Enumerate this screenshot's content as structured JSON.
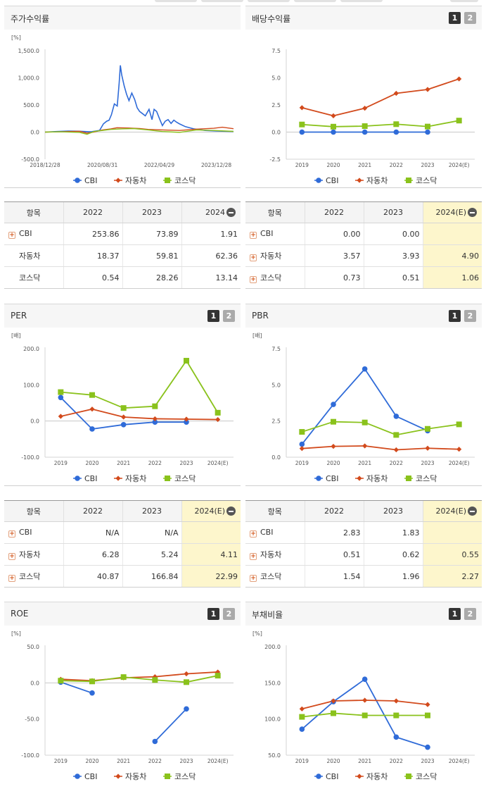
{
  "colors": {
    "cbi": "#2f6bd8",
    "auto": "#d24a1c",
    "kosdaq": "#8ac21c"
  },
  "legend": [
    "CBI",
    "자동차",
    "코스닥"
  ],
  "panels": {
    "stock": {
      "title": "주가수익률",
      "unit": "[%]",
      "y_ticks": [
        "1,500.0",
        "1,000.0",
        "500.0",
        "0.0",
        "-500.0"
      ],
      "x_ticks": [
        "2018/12/28",
        "2020/08/31",
        "2022/04/29",
        "2023/12/28"
      ]
    },
    "dividend": {
      "title": "배당수익률",
      "unit": "",
      "y_ticks": [
        "7.5",
        "5.0",
        "2.5",
        "0.0",
        "-2.5"
      ],
      "x_ticks": [
        "2019",
        "2020",
        "2021",
        "2022",
        "2023",
        "2024(E)"
      ]
    },
    "per": {
      "title": "PER",
      "unit": "[배]",
      "y_ticks": [
        "200.0",
        "100.0",
        "0.0",
        "-100.0"
      ],
      "x_ticks": [
        "2019",
        "2020",
        "2021",
        "2022",
        "2023",
        "2024(E)"
      ]
    },
    "pbr": {
      "title": "PBR",
      "unit": "[배]",
      "y_ticks": [
        "7.5",
        "5.0",
        "2.5",
        "0.0"
      ],
      "x_ticks": [
        "2019",
        "2020",
        "2021",
        "2022",
        "2023",
        "2024(E)"
      ]
    },
    "roe": {
      "title": "ROE",
      "unit": "[%]",
      "y_ticks": [
        "50.0",
        "0.0",
        "-50.0",
        "-100.0"
      ],
      "x_ticks": [
        "2019",
        "2020",
        "2021",
        "2022",
        "2023",
        "2024(E)"
      ]
    },
    "debt": {
      "title": "부채비율",
      "unit": "[%]",
      "y_ticks": [
        "200.0",
        "150.0",
        "100.0",
        "50.0"
      ],
      "x_ticks": [
        "2019",
        "2020",
        "2021",
        "2022",
        "2023",
        "2024(E)"
      ]
    }
  },
  "buttons": {
    "b1": "1",
    "b2": "2"
  },
  "tables": {
    "stock": {
      "headers": [
        "항목",
        "2022",
        "2023",
        "2024"
      ],
      "rows": [
        {
          "name": "CBI",
          "vals": [
            "253.86",
            "73.89",
            "1.91"
          ]
        },
        {
          "name": "자동차",
          "vals": [
            "18.37",
            "59.81",
            "62.36"
          ]
        },
        {
          "name": "코스닥",
          "vals": [
            "0.54",
            "28.26",
            "13.14"
          ]
        }
      ]
    },
    "dividend": {
      "headers": [
        "항목",
        "2022",
        "2023",
        "2024(E)"
      ],
      "rows": [
        {
          "name": "CBI",
          "vals": [
            "0.00",
            "0.00",
            ""
          ]
        },
        {
          "name": "자동차",
          "vals": [
            "3.57",
            "3.93",
            "4.90"
          ]
        },
        {
          "name": "코스닥",
          "vals": [
            "0.73",
            "0.51",
            "1.06"
          ]
        }
      ]
    },
    "per": {
      "headers": [
        "항목",
        "2022",
        "2023",
        "2024(E)"
      ],
      "rows": [
        {
          "name": "CBI",
          "vals": [
            "N/A",
            "N/A",
            ""
          ]
        },
        {
          "name": "자동차",
          "vals": [
            "6.28",
            "5.24",
            "4.11"
          ]
        },
        {
          "name": "코스닥",
          "vals": [
            "40.87",
            "166.84",
            "22.99"
          ]
        }
      ]
    },
    "pbr": {
      "headers": [
        "항목",
        "2022",
        "2023",
        "2024(E)"
      ],
      "rows": [
        {
          "name": "CBI",
          "vals": [
            "2.83",
            "1.83",
            ""
          ]
        },
        {
          "name": "자동차",
          "vals": [
            "0.51",
            "0.62",
            "0.55"
          ]
        },
        {
          "name": "코스닥",
          "vals": [
            "1.54",
            "1.96",
            "2.27"
          ]
        }
      ]
    }
  },
  "chart_data": [
    {
      "id": "stock",
      "type": "line",
      "title": "주가수익률",
      "ylabel": "[%]",
      "ylim": [
        -500,
        1500
      ],
      "x_range": [
        "2018-12-28",
        "2024-06-28"
      ],
      "x_ticks": [
        "2018/12/28",
        "2020/08/31",
        "2022/04/29",
        "2023/12/28"
      ],
      "series": [
        {
          "name": "CBI",
          "x": [
            "2018-12-28",
            "2019-05-01",
            "2019-09-01",
            "2019-12-31",
            "2020-05-01",
            "2020-08-01",
            "2020-09-10",
            "2020-10-15",
            "2020-11-10",
            "2020-12-05",
            "2021-01-05",
            "2021-02-05",
            "2021-02-25",
            "2021-03-10",
            "2021-03-25",
            "2021-04-20",
            "2021-05-15",
            "2021-06-10",
            "2021-07-10",
            "2021-08-10",
            "2021-09-05",
            "2021-10-01",
            "2021-11-01",
            "2021-12-01",
            "2022-01-10",
            "2022-02-10",
            "2022-03-05",
            "2022-04-01",
            "2022-05-01",
            "2022-06-01",
            "2022-07-01",
            "2022-08-01",
            "2022-09-01",
            "2022-10-01",
            "2022-11-01",
            "2022-12-01",
            "2023-02-01",
            "2023-05-01",
            "2023-09-01",
            "2024-01-01",
            "2024-06-28"
          ],
          "y": [
            0,
            10,
            20,
            15,
            5,
            30,
            150,
            200,
            220,
            320,
            520,
            480,
            900,
            1230,
            1050,
            850,
            700,
            580,
            720,
            600,
            450,
            380,
            340,
            300,
            420,
            230,
            420,
            380,
            250,
            120,
            200,
            230,
            160,
            220,
            180,
            150,
            100,
            60,
            30,
            20,
            10
          ]
        },
        {
          "name": "자동차",
          "x": [
            "2018-12-28",
            "2019-06-01",
            "2019-12-31",
            "2020-03-20",
            "2020-06-01",
            "2020-09-01",
            "2020-12-01",
            "2021-02-01",
            "2021-06-01",
            "2021-10-01",
            "2022-01-01",
            "2022-06-01",
            "2022-12-01",
            "2023-06-01",
            "2023-12-01",
            "2024-03-01",
            "2024-06-28"
          ],
          "y": [
            0,
            5,
            15,
            -20,
            0,
            40,
            60,
            80,
            75,
            65,
            50,
            40,
            30,
            55,
            70,
            90,
            62
          ]
        },
        {
          "name": "코스닥",
          "x": [
            "2018-12-28",
            "2019-06-01",
            "2019-12-31",
            "2020-03-20",
            "2020-06-01",
            "2020-09-01",
            "2020-12-01",
            "2021-04-01",
            "2021-08-01",
            "2022-01-01",
            "2022-06-01",
            "2022-12-01",
            "2023-06-01",
            "2023-12-01",
            "2024-06-28"
          ],
          "y": [
            0,
            5,
            -5,
            -40,
            10,
            30,
            50,
            60,
            65,
            40,
            10,
            -5,
            40,
            30,
            13
          ]
        }
      ],
      "legend": "bottom",
      "grid": false
    },
    {
      "id": "dividend",
      "type": "line",
      "title": "배당수익률",
      "ylim": [
        -2.5,
        7.5
      ],
      "categories": [
        "2019",
        "2020",
        "2021",
        "2022",
        "2023",
        "2024(E)"
      ],
      "series": [
        {
          "name": "CBI",
          "values": [
            0,
            0,
            0,
            0,
            0,
            null
          ]
        },
        {
          "name": "자동차",
          "values": [
            2.25,
            1.5,
            2.2,
            3.57,
            3.93,
            4.9
          ]
        },
        {
          "name": "코스닥",
          "values": [
            0.7,
            0.5,
            0.55,
            0.73,
            0.51,
            1.06
          ]
        }
      ],
      "legend": "bottom",
      "grid": false
    },
    {
      "id": "per",
      "type": "line",
      "title": "PER",
      "ylabel": "[배]",
      "ylim": [
        -100,
        200
      ],
      "categories": [
        "2019",
        "2020",
        "2021",
        "2022",
        "2023",
        "2024(E)"
      ],
      "series": [
        {
          "name": "CBI",
          "values": [
            65,
            -22,
            -10,
            -3,
            -3,
            null
          ]
        },
        {
          "name": "자동차",
          "values": [
            13,
            33,
            11,
            6.28,
            5.24,
            4.11
          ]
        },
        {
          "name": "코스닥",
          "values": [
            80,
            72,
            36,
            40.87,
            166.84,
            22.99
          ]
        }
      ],
      "legend": "bottom",
      "grid": false
    },
    {
      "id": "pbr",
      "type": "line",
      "title": "PBR",
      "ylabel": "[배]",
      "ylim": [
        0,
        7.5
      ],
      "categories": [
        "2019",
        "2020",
        "2021",
        "2022",
        "2023",
        "2024(E)"
      ],
      "series": [
        {
          "name": "CBI",
          "values": [
            0.9,
            3.65,
            6.1,
            2.83,
            1.83,
            null
          ]
        },
        {
          "name": "자동차",
          "values": [
            0.6,
            0.75,
            0.78,
            0.51,
            0.62,
            0.55
          ]
        },
        {
          "name": "코스닥",
          "values": [
            1.75,
            2.45,
            2.4,
            1.54,
            1.96,
            2.27
          ]
        }
      ],
      "legend": "bottom",
      "grid": false
    },
    {
      "id": "roe",
      "type": "line",
      "title": "ROE",
      "ylabel": "[%]",
      "ylim": [
        -100,
        50
      ],
      "categories": [
        "2019",
        "2020",
        "2021",
        "2022",
        "2023",
        "2024(E)"
      ],
      "series": [
        {
          "name": "CBI",
          "values": [
            1,
            -14,
            null,
            -81,
            -36,
            null
          ]
        },
        {
          "name": "자동차",
          "values": [
            5,
            3,
            7,
            8.5,
            12.5,
            15
          ]
        },
        {
          "name": "코스닥",
          "values": [
            3,
            2,
            8,
            4,
            1,
            10
          ]
        }
      ],
      "legend": "bottom",
      "grid": false
    },
    {
      "id": "debt",
      "type": "line",
      "title": "부채비율",
      "ylabel": "[%]",
      "ylim": [
        50,
        200
      ],
      "categories": [
        "2019",
        "2020",
        "2021",
        "2022",
        "2023",
        "2024(E)"
      ],
      "series": [
        {
          "name": "CBI",
          "values": [
            86,
            124,
            155,
            75,
            61,
            null
          ]
        },
        {
          "name": "자동차",
          "values": [
            114,
            125,
            126,
            125,
            120,
            null
          ]
        },
        {
          "name": "코스닥",
          "values": [
            103,
            108,
            105,
            105,
            105,
            null
          ]
        }
      ],
      "legend": "bottom",
      "grid": false
    }
  ]
}
